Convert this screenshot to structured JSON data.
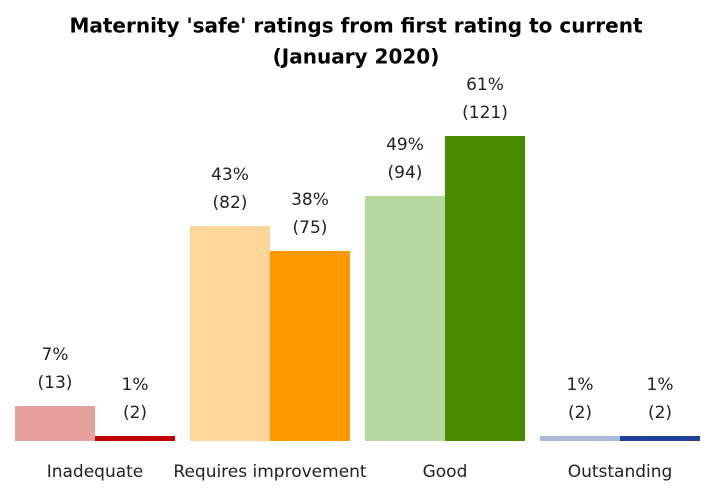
{
  "chart_data": {
    "type": "bar",
    "title": "Maternity 'safe' ratings from first rating to current",
    "subtitle": "(January 2020)",
    "categories": [
      "Inadequate",
      "Requires improvement",
      "Good",
      "Outstanding"
    ],
    "series": [
      {
        "colors": [
          "#e6a19d",
          "#ffd699",
          "#b6d7a0",
          "#a9b8dd"
        ],
        "values": [
          7,
          43,
          49,
          1
        ],
        "value_labels": [
          "7%",
          "43%",
          "49%",
          "1%"
        ],
        "counts": [
          13,
          82,
          94,
          2
        ],
        "count_labels": [
          "(13)",
          "(82)",
          "(94)",
          "(2)"
        ]
      },
      {
        "colors": [
          "#c00000",
          "#ff9900",
          "#4a8c00",
          "#1f3f99"
        ],
        "values": [
          1,
          38,
          61,
          1
        ],
        "value_labels": [
          "1%",
          "38%",
          "61%",
          "1%"
        ],
        "counts": [
          2,
          75,
          121,
          2
        ],
        "count_labels": [
          "(2)",
          "(75)",
          "(121)",
          "(2)"
        ]
      }
    ]
  }
}
